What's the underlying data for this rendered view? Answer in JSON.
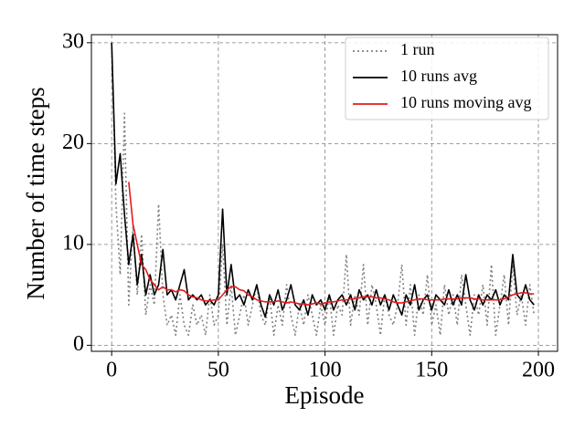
{
  "chart_data": {
    "type": "line",
    "xlabel": "Episode",
    "ylabel": "Number of time steps",
    "x": [
      0,
      2,
      4,
      6,
      8,
      10,
      12,
      14,
      16,
      18,
      20,
      22,
      24,
      26,
      28,
      30,
      32,
      34,
      36,
      38,
      40,
      42,
      44,
      46,
      48,
      50,
      52,
      54,
      56,
      58,
      60,
      62,
      64,
      66,
      68,
      70,
      72,
      74,
      76,
      78,
      80,
      82,
      84,
      86,
      88,
      90,
      92,
      94,
      96,
      98,
      100,
      102,
      104,
      106,
      108,
      110,
      112,
      114,
      116,
      118,
      120,
      122,
      124,
      126,
      128,
      130,
      132,
      134,
      136,
      138,
      140,
      142,
      144,
      146,
      148,
      150,
      152,
      154,
      156,
      158,
      160,
      162,
      164,
      166,
      168,
      170,
      172,
      174,
      176,
      178,
      180,
      182,
      184,
      186,
      188,
      190,
      192,
      194,
      196,
      198
    ],
    "series": [
      {
        "name": "1 run",
        "color": "#808080",
        "linestyle": "dotted",
        "values": [
          30,
          14,
          7,
          23,
          4,
          12,
          5,
          11,
          3,
          6,
          4,
          14,
          5,
          2,
          3,
          1,
          5,
          2,
          1,
          4,
          2,
          3,
          1,
          5,
          2,
          3,
          10,
          2,
          6,
          1,
          3,
          5,
          2,
          4,
          6,
          3,
          2,
          5,
          1,
          4,
          2,
          6,
          3,
          1,
          4,
          2,
          5,
          3,
          1,
          4,
          2,
          5,
          1,
          4,
          3,
          9,
          2,
          5,
          3,
          8,
          2,
          6,
          4,
          1,
          5,
          3,
          2,
          4,
          8,
          2,
          6,
          1,
          5,
          3,
          7,
          2,
          4,
          1,
          6,
          3,
          5,
          2,
          7,
          4,
          1,
          5,
          3,
          6,
          2,
          8,
          1,
          4,
          7,
          2,
          8,
          3,
          5,
          2,
          6,
          3
        ]
      },
      {
        "name": "10 runs avg",
        "color": "#000000",
        "linestyle": "solid",
        "values": [
          30,
          16,
          19,
          13,
          8,
          11,
          6,
          9,
          5,
          7,
          5,
          6,
          9.5,
          5,
          5.5,
          4.5,
          6,
          7.5,
          4.5,
          5,
          4.5,
          5,
          4,
          4.5,
          4,
          5,
          13.5,
          5,
          8,
          4.5,
          5,
          4,
          5.5,
          4.5,
          6,
          4,
          2.8,
          5,
          4,
          5.5,
          3.5,
          4.5,
          6,
          4,
          3.5,
          4.5,
          3,
          5,
          4,
          4.5,
          3.5,
          5,
          3.5,
          4.5,
          5,
          4,
          5,
          3.5,
          5.5,
          4.5,
          5,
          4,
          5.5,
          4,
          5,
          3.5,
          5,
          4,
          3,
          5,
          4,
          6,
          3.5,
          4.5,
          5,
          3.5,
          5,
          4.5,
          4,
          5.5,
          4,
          5,
          4,
          7,
          4.5,
          3.5,
          5,
          4,
          5,
          4.5,
          5.5,
          4,
          5,
          4.5,
          9,
          5,
          4.5,
          6,
          4.5,
          4
        ]
      },
      {
        "name": "10 runs moving avg",
        "color": "#e41a1c",
        "linestyle": "solid",
        "values": [
          null,
          null,
          null,
          null,
          16.2,
          12,
          10,
          8,
          7.5,
          6.5,
          6,
          5.5,
          5.8,
          5.5,
          5.5,
          5.3,
          5.5,
          5.4,
          5,
          4.8,
          4.7,
          4.5,
          4.4,
          4.4,
          4.5,
          4.5,
          5,
          5.5,
          5.8,
          5.8,
          5.5,
          5.4,
          5,
          4.8,
          4.5,
          4.4,
          4.3,
          4.3,
          4.3,
          4.4,
          4.3,
          4.2,
          4.3,
          4.2,
          4.1,
          4.1,
          4.0,
          4.1,
          4.2,
          4.1,
          4.2,
          4.3,
          4.3,
          4.4,
          4.5,
          4.5,
          4.6,
          4.6,
          4.7,
          4.8,
          4.8,
          4.8,
          4.7,
          4.7,
          4.6,
          4.5,
          4.3,
          4.2,
          4.2,
          4.3,
          4.4,
          4.5,
          4.6,
          4.6,
          4.5,
          4.5,
          4.5,
          4.5,
          4.6,
          4.6,
          4.6,
          4.6,
          4.7,
          4.7,
          4.7,
          4.6,
          4.6,
          4.5,
          4.5,
          4.5,
          4.5,
          4.5,
          4.6,
          4.8,
          5.0,
          5.1,
          5.2,
          5.2,
          5.1,
          5.1
        ]
      }
    ],
    "xlim": [
      -9.5,
      209
    ],
    "ylim": [
      -0.6,
      30.8
    ],
    "xticks": [
      0,
      50,
      100,
      150,
      200
    ],
    "yticks": [
      0,
      10,
      20,
      30
    ],
    "grid": true,
    "legend": "upper right"
  }
}
